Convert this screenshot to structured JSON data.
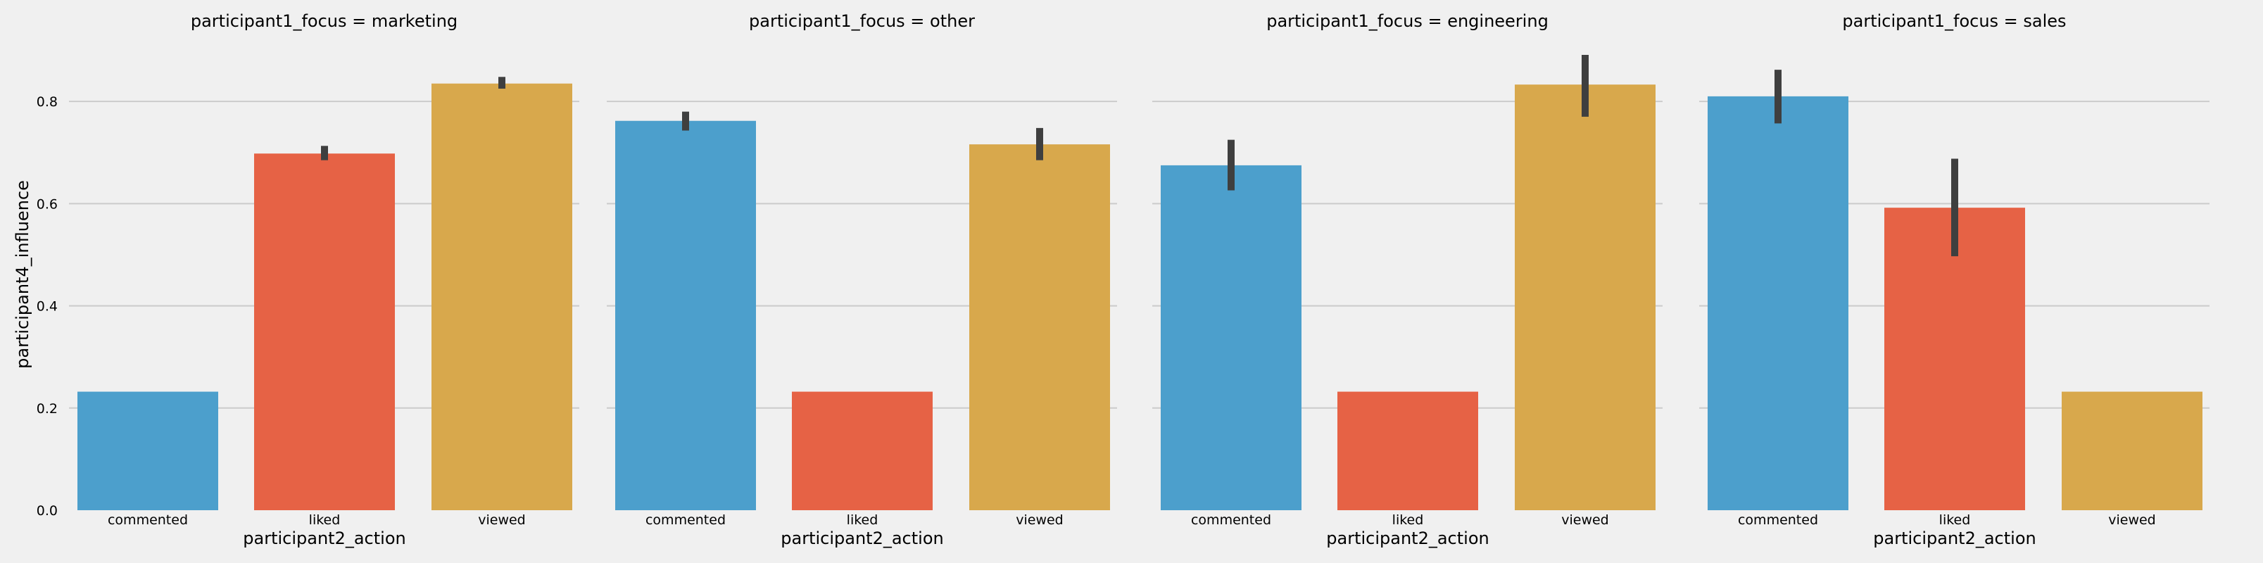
{
  "chart_data": {
    "type": "bar",
    "ylabel": "participant4_influence",
    "xlabel": "participant2_action",
    "ylim": [
      0,
      0.92
    ],
    "yticks": [
      "0.0",
      "0.2",
      "0.4",
      "0.6",
      "0.8"
    ],
    "ytick_values": [
      0.0,
      0.2,
      0.4,
      0.6,
      0.8
    ],
    "grid": "horizontal",
    "categories": [
      "commented",
      "liked",
      "viewed"
    ],
    "colors": [
      "#4c9fcc",
      "#e66245",
      "#d8a84c"
    ],
    "error_bar_color": "#3f3f3f",
    "facets": [
      {
        "title": "participant1_focus = marketing",
        "values": [
          0.232,
          0.698,
          0.835
        ],
        "errors": [
          null,
          [
            0.685,
            0.713
          ],
          [
            0.825,
            0.848
          ]
        ]
      },
      {
        "title": "participant1_focus = other",
        "values": [
          0.762,
          0.232,
          0.716
        ],
        "errors": [
          [
            0.743,
            0.78
          ],
          null,
          [
            0.685,
            0.748
          ]
        ]
      },
      {
        "title": "participant1_focus = engineering",
        "values": [
          0.675,
          0.232,
          0.833
        ],
        "errors": [
          [
            0.626,
            0.725
          ],
          null,
          [
            0.77,
            0.891
          ]
        ]
      },
      {
        "title": "participant1_focus = sales",
        "values": [
          0.81,
          0.592,
          0.232
        ],
        "errors": [
          [
            0.757,
            0.862
          ],
          [
            0.497,
            0.688
          ],
          null
        ]
      }
    ]
  }
}
